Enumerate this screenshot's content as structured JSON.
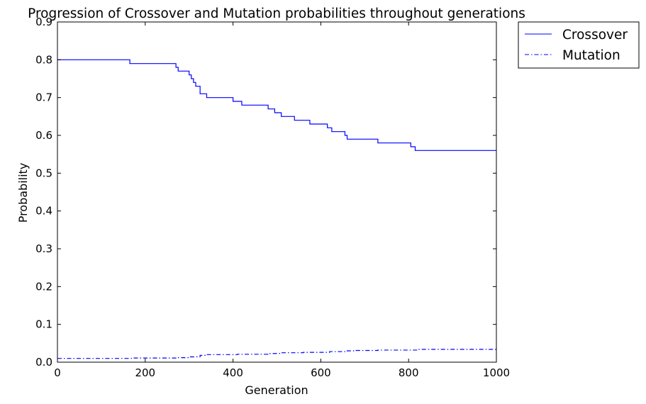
{
  "chart_data": {
    "type": "line",
    "title": "Progression of Crossover and Mutation probabilities throughout generations",
    "xlabel": "Generation",
    "ylabel": "Probability",
    "xlim": [
      0,
      1000
    ],
    "ylim": [
      0,
      0.9
    ],
    "xticks": [
      0,
      200,
      400,
      600,
      800,
      1000
    ],
    "yticks": [
      0.0,
      0.1,
      0.2,
      0.3,
      0.4,
      0.5,
      0.6,
      0.7,
      0.8,
      0.9
    ],
    "xtick_labels": [
      "0",
      "200",
      "400",
      "600",
      "800",
      "1000"
    ],
    "ytick_labels": [
      "0.0",
      "0.1",
      "0.2",
      "0.3",
      "0.4",
      "0.5",
      "0.6",
      "0.7",
      "0.8",
      "0.9"
    ],
    "grid": false,
    "legend_position": "outside-top-right",
    "series": [
      {
        "name": "Crossover",
        "color": "#0000ff",
        "style": "solid",
        "step": true,
        "x": [
          0,
          165,
          270,
          275,
          300,
          305,
          310,
          315,
          325,
          340,
          400,
          420,
          480,
          495,
          510,
          540,
          575,
          615,
          625,
          655,
          660,
          730,
          805,
          815,
          1000
        ],
        "y": [
          0.8,
          0.79,
          0.78,
          0.77,
          0.76,
          0.75,
          0.74,
          0.73,
          0.71,
          0.7,
          0.69,
          0.68,
          0.67,
          0.66,
          0.65,
          0.64,
          0.63,
          0.62,
          0.61,
          0.6,
          0.59,
          0.58,
          0.57,
          0.56,
          0.56
        ]
      },
      {
        "name": "Mutation",
        "color": "#0000ff",
        "style": "dashdot",
        "step": true,
        "x": [
          0,
          170,
          270,
          300,
          325,
          340,
          410,
          480,
          510,
          560,
          620,
          660,
          680,
          730,
          820,
          1000
        ],
        "y": [
          0.01,
          0.011,
          0.012,
          0.014,
          0.018,
          0.02,
          0.021,
          0.023,
          0.025,
          0.026,
          0.028,
          0.03,
          0.031,
          0.032,
          0.034,
          0.034
        ]
      }
    ]
  }
}
